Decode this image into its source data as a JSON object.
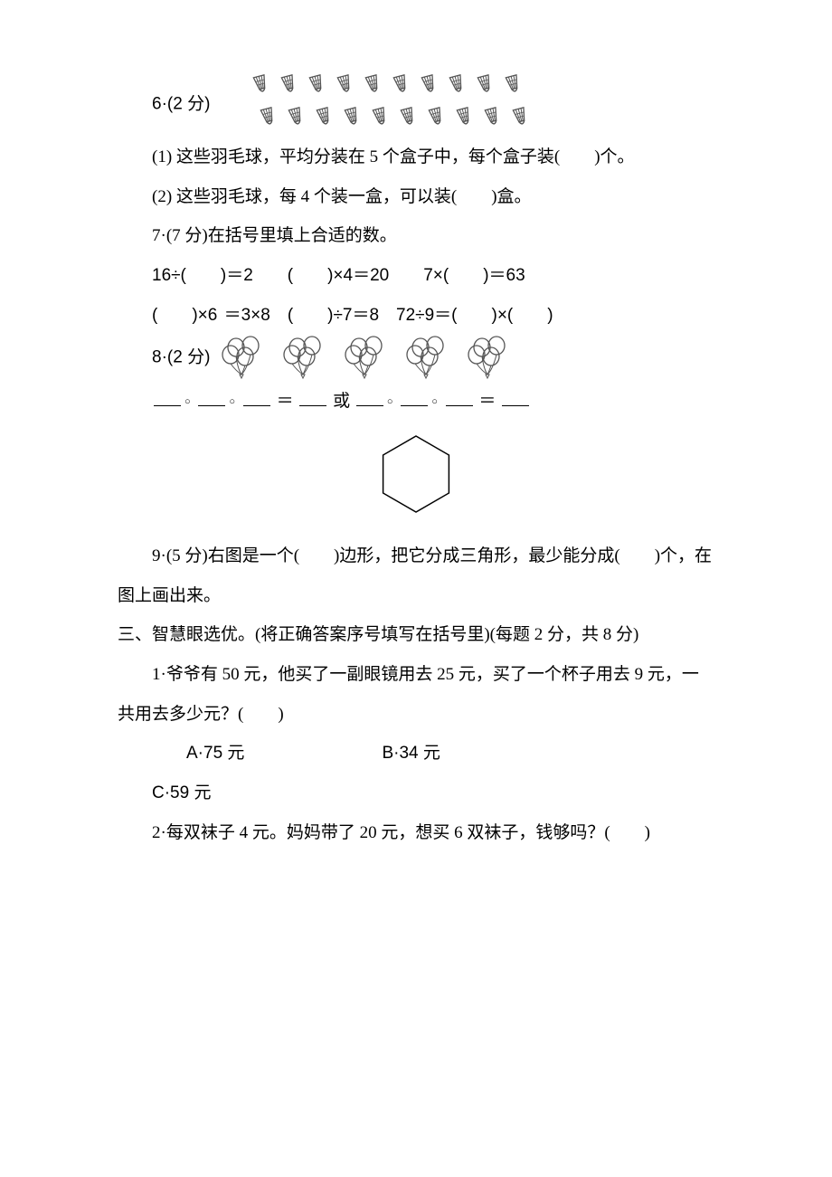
{
  "q6": {
    "number": "6",
    "points_label": "·(2 分)",
    "shuttlecock_count": 20,
    "shuttlecock_rows": [
      10,
      10
    ],
    "sub1": "(1) 这些羽毛球，平均分装在 5 个盒子中，每个盒子装(　　)个。",
    "sub2": "(2) 这些羽毛球，每 4 个装一盒，可以装(　　)盒。"
  },
  "q7": {
    "label": "7·(7 分)在括号里填上合适的数。",
    "row1": "16÷(　　)＝2　　(　　)×4＝20　　7×(　　)＝63",
    "row2": "(　　)×6 ＝3×8　(　　)÷7＝8　72÷9＝(　　)×(　　)"
  },
  "q8": {
    "number": "8",
    "points_label": "·(2 分)",
    "balloon_clusters": 5,
    "balloons_per_cluster": 4,
    "eq_or": "或"
  },
  "q9": {
    "label": "9·(5 分)右图是一个(　　)边形，把它分成三角形，最少能分成(　　)个，在图上画出来。",
    "hex_size": 90,
    "hex_stroke": "#000000",
    "hex_fill": "none"
  },
  "section3": {
    "heading": "三、智慧眼选优。(将正确答案序号填写在括号里)(每题 2 分，共 8 分)"
  },
  "s3q1": {
    "text": "1·爷爷有 50 元，他买了一副眼镜用去 25 元，买了一个杯子用去 9 元，一共用去多少元？(　　)",
    "choice_a": "A·75 元",
    "choice_b": "B·34 元",
    "choice_c": "C·59 元"
  },
  "s3q2": {
    "text": "2·每双袜子 4 元。妈妈带了 20 元，想买 6 双袜子，钱够吗？(　　)"
  },
  "colors": {
    "ink": "#000000",
    "background": "#ffffff",
    "shuttle_outline": "#555555",
    "balloon_stroke": "#555555"
  }
}
